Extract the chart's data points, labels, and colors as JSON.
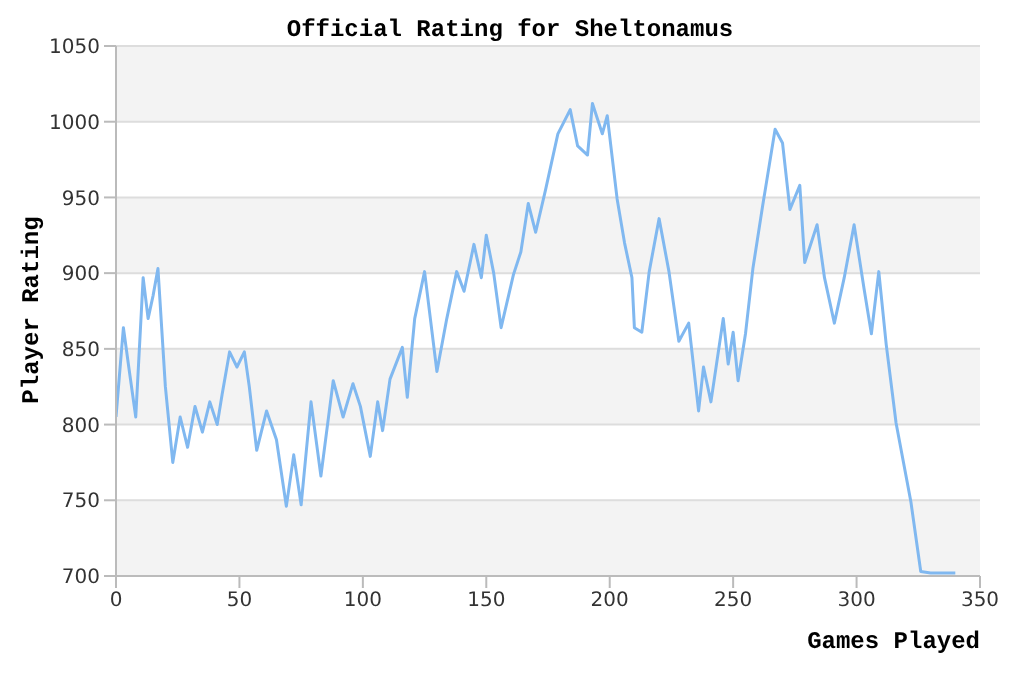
{
  "chart_data": {
    "type": "line",
    "title": "Official Rating for Sheltonamus",
    "xlabel": "Games Played",
    "ylabel": "Player Rating",
    "x": [
      0,
      3,
      5,
      8,
      11,
      13,
      15,
      17,
      20,
      23,
      26,
      29,
      32,
      35,
      38,
      41,
      43,
      46,
      49,
      52,
      54,
      57,
      61,
      65,
      69,
      72,
      75,
      79,
      83,
      88,
      92,
      96,
      99,
      103,
      106,
      108,
      111,
      116,
      118,
      121,
      125,
      130,
      134,
      138,
      141,
      145,
      148,
      150,
      153,
      156,
      161,
      164,
      167,
      170,
      174,
      179,
      184,
      187,
      191,
      193,
      197,
      199,
      203,
      206,
      209,
      210,
      213,
      216,
      220,
      224,
      228,
      232,
      236,
      238,
      241,
      246,
      248,
      250,
      252,
      255,
      258,
      262,
      267,
      270,
      273,
      277,
      279,
      284,
      287,
      291,
      295,
      299,
      303,
      306,
      309,
      312,
      316,
      322,
      326,
      330,
      340
    ],
    "series": [
      {
        "color": "#80b8f0",
        "values": [
          805,
          864,
          840,
          805,
          897,
          870,
          885,
          903,
          825,
          775,
          805,
          785,
          812,
          795,
          815,
          800,
          820,
          848,
          838,
          848,
          825,
          783,
          809,
          790,
          746,
          780,
          747,
          815,
          766,
          829,
          805,
          827,
          812,
          779,
          815,
          796,
          830,
          851,
          818,
          870,
          901,
          835,
          870,
          901,
          888,
          919,
          897,
          925,
          900,
          864,
          899,
          914,
          946,
          927,
          955,
          992,
          1008,
          984,
          978,
          1012,
          992,
          1004,
          949,
          920,
          897,
          864,
          861,
          901,
          936,
          901,
          855,
          867,
          809,
          838,
          815,
          870,
          840,
          861,
          829,
          860,
          903,
          945,
          995,
          986,
          942,
          958,
          907,
          932,
          897,
          867,
          897,
          932,
          890,
          860,
          901,
          853,
          801,
          749,
          703,
          702,
          702
        ]
      }
    ],
    "xlim": [
      0,
      350
    ],
    "xticks": [
      0,
      50,
      100,
      150,
      200,
      250,
      300,
      350
    ],
    "ylim": [
      700,
      1050
    ],
    "yticks": [
      700,
      750,
      800,
      850,
      900,
      950,
      1000,
      1050
    ],
    "grid": "y",
    "legend": false,
    "marker": "none",
    "line_style": "solid"
  }
}
